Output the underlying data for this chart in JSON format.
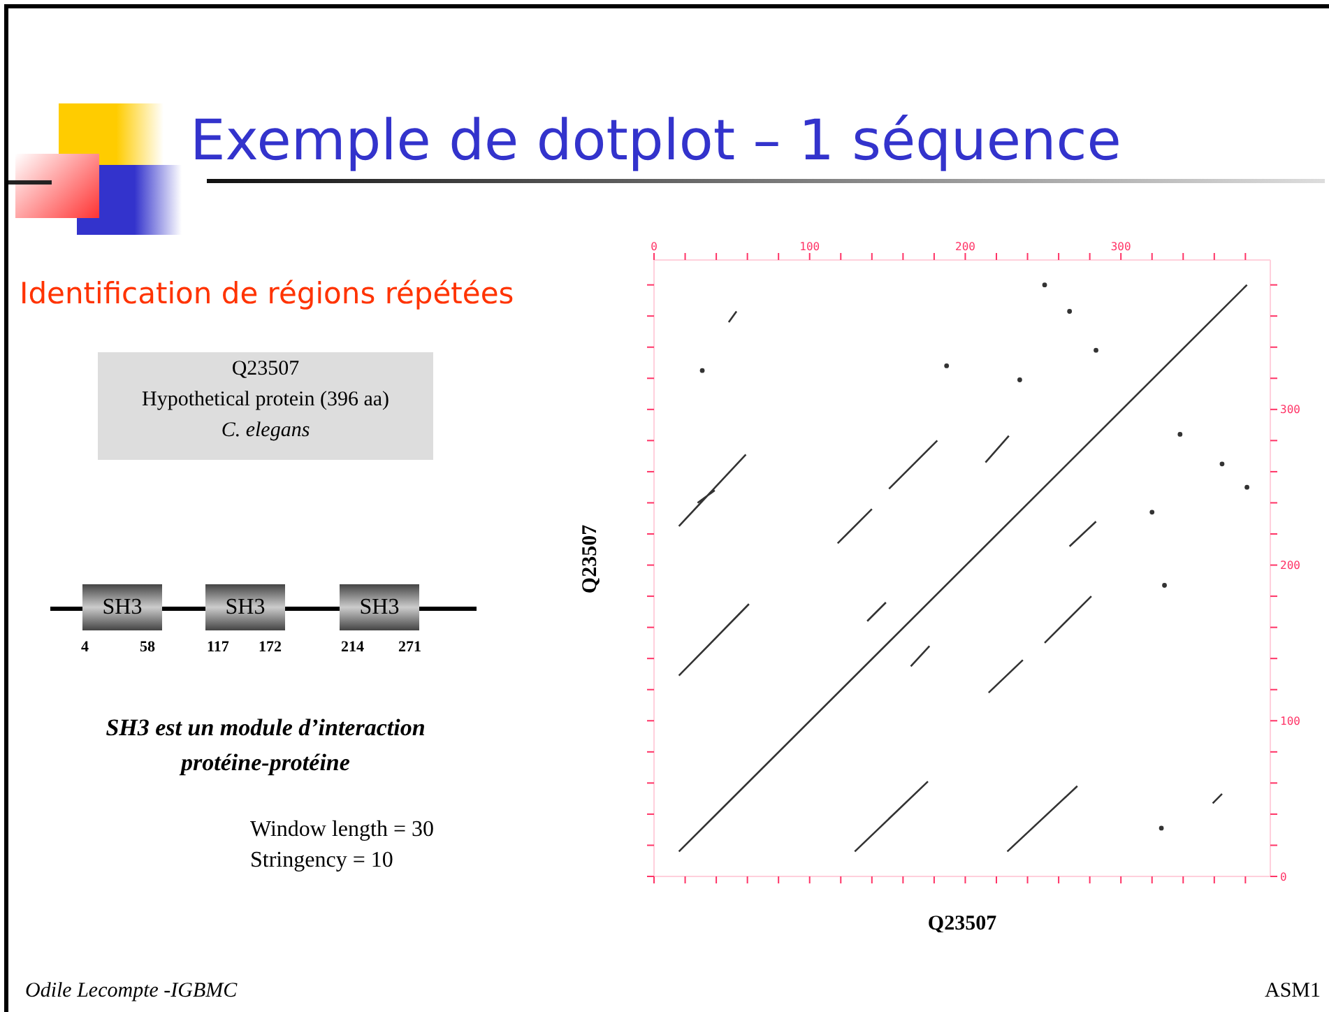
{
  "chart_data": {
    "type": "line",
    "title": "Exemple de dotplot – 1 séquence",
    "subtitle": "Identification de régions répétées",
    "xlabel": "Q23507",
    "ylabel": "Q23507",
    "annotations": [
      "Q23507",
      "Hypothetical protein (396 aa)",
      "C. elegans",
      "SH3",
      "SH3",
      "SH3",
      "4",
      "58",
      "117",
      "172",
      "214",
      "271",
      "SH3 est un module d’interaction",
      "protéine-protéine",
      "Window length = 30",
      "Stringency = 10",
      "Odile Lecompte -IGBMC",
      "ASM1"
    ],
    "xlim": [
      0,
      396
    ],
    "ylim": [
      0,
      396
    ],
    "xticks": [
      0,
      {
        "value": 20,
        "label": null
      },
      {
        "value": 40,
        "label": null
      },
      {
        "value": 60,
        "label": null
      },
      {
        "value": 80,
        "label": null
      },
      100,
      {
        "value": 120,
        "label": null
      },
      {
        "value": 140,
        "label": null
      },
      {
        "value": 160,
        "label": null
      },
      {
        "value": 180,
        "label": null
      },
      200,
      {
        "value": 220,
        "label": null
      },
      {
        "value": 240,
        "label": null
      },
      {
        "value": 260,
        "label": null
      },
      {
        "value": 280,
        "label": null
      },
      300,
      {
        "value": 320,
        "label": null
      },
      {
        "value": 340,
        "label": null
      },
      {
        "value": 360,
        "label": null
      },
      {
        "value": 380,
        "label": null
      }
    ],
    "yticks": [
      0,
      {
        "value": 20,
        "label": null
      },
      {
        "value": 40,
        "label": null
      },
      {
        "value": 60,
        "label": null
      },
      {
        "value": 80,
        "label": null
      },
      100,
      {
        "value": 120,
        "label": null
      },
      {
        "value": 140,
        "label": null
      },
      {
        "value": 160,
        "label": null
      },
      {
        "value": 180,
        "label": null
      },
      200,
      {
        "value": 220,
        "label": null
      },
      {
        "value": 240,
        "label": null
      },
      {
        "value": 260,
        "label": null
      },
      {
        "value": 280,
        "label": null
      },
      300,
      {
        "value": 320,
        "label": null
      },
      {
        "value": 340,
        "label": null
      },
      {
        "value": 360,
        "label": null
      },
      {
        "value": 380,
        "label": null
      }
    ],
    "marker": "none",
    "series": [
      {
        "color": "#333333",
        "x": [
          16,
          381,
          null,
          16,
          59,
          null,
          28,
          39,
          null,
          118,
          140,
          null,
          151,
          182,
          null,
          213,
          228,
          null,
          267,
          284,
          null,
          48,
          53,
          null,
          16,
          61,
          null,
          129,
          176,
          null,
          227,
          272,
          null,
          215,
          237,
          null,
          251,
          281,
          null,
          137,
          149,
          null,
          165,
          177,
          null,
          359,
          365
        ],
        "values": [
          16,
          380,
          null,
          225,
          271,
          null,
          240,
          248,
          null,
          214,
          236,
          null,
          249,
          280,
          null,
          266,
          283,
          null,
          212,
          228,
          null,
          356,
          363,
          null,
          129,
          175,
          null,
          16,
          61,
          null,
          16,
          58,
          null,
          118,
          139,
          null,
          150,
          180,
          null,
          164,
          176,
          null,
          135,
          148,
          null,
          47,
          53
        ]
      },
      {
        "type": "scatter",
        "color": "#333333",
        "x": [
          251,
          267,
          284,
          188,
          31,
          235,
          338,
          365,
          381,
          320,
          328,
          326
        ],
        "values": [
          380,
          363,
          338,
          328,
          325,
          319,
          284,
          265,
          250,
          234,
          187,
          31
        ]
      }
    ]
  }
}
